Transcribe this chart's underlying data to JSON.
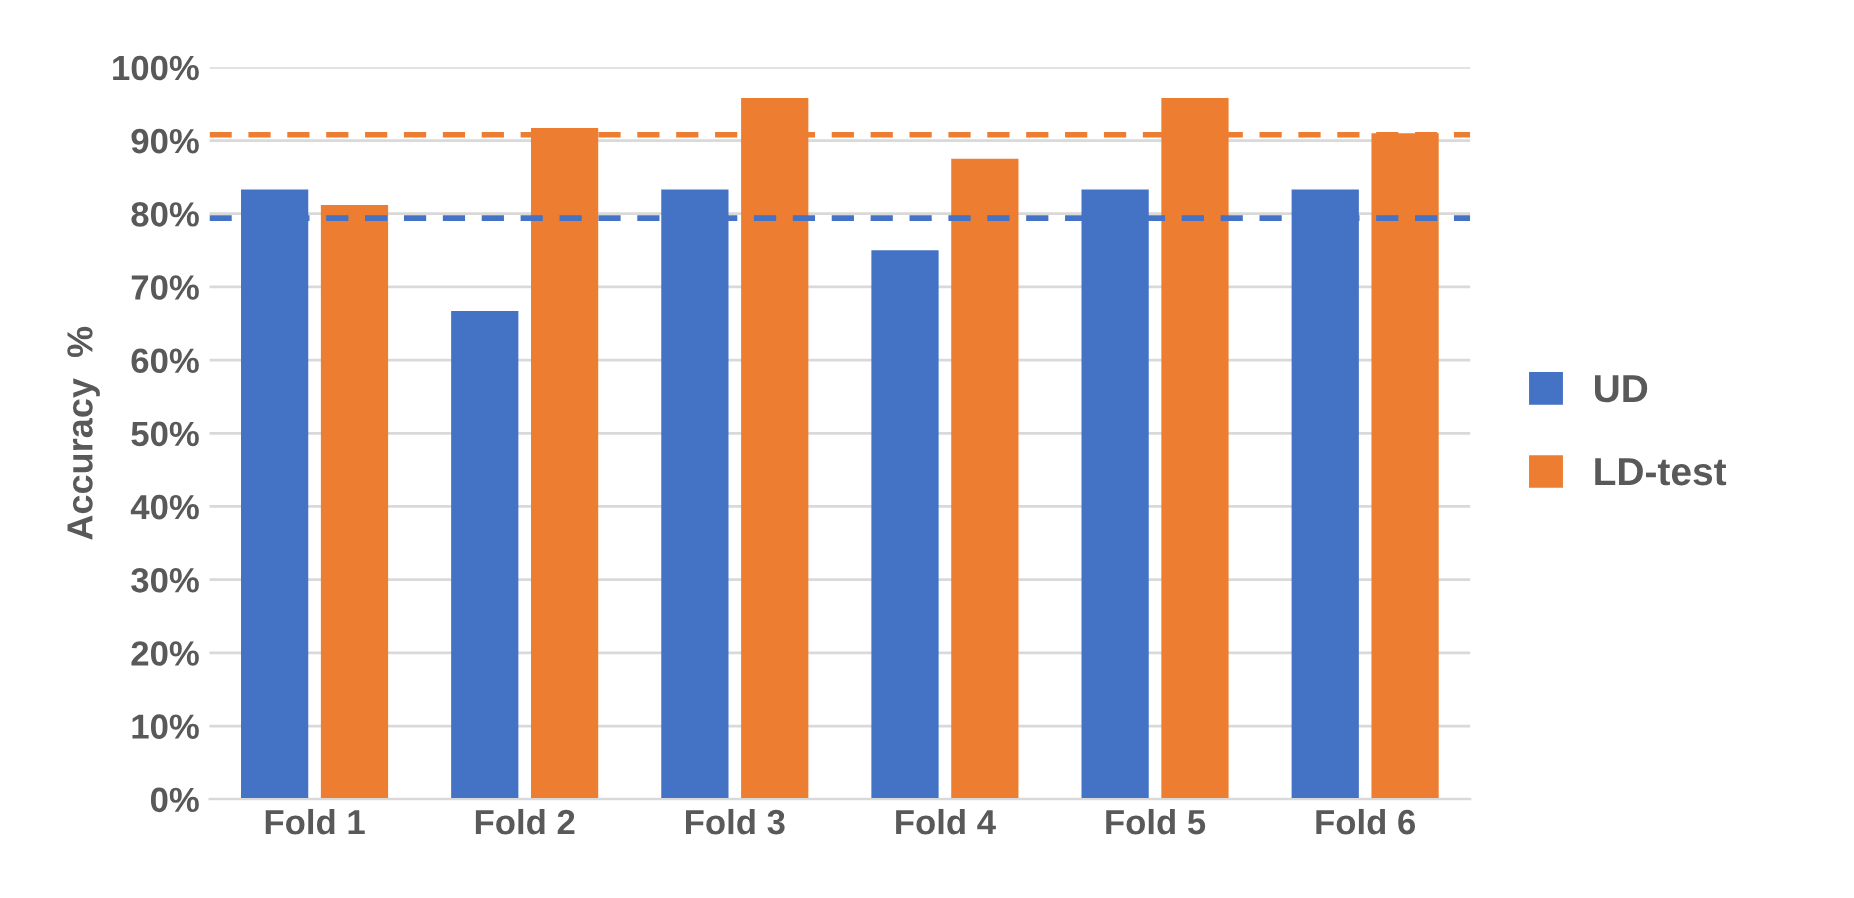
{
  "chart_data": {
    "type": "bar",
    "ylabel": "Accuracy  %",
    "categories": [
      "Fold 1",
      "Fold 2",
      "Fold 3",
      "Fold 4",
      "Fold 5",
      "Fold 6"
    ],
    "series": [
      {
        "name": "UD",
        "color": "#4472c4",
        "values": [
          83.3,
          66.7,
          83.3,
          75,
          83.3,
          83.3
        ]
      },
      {
        "name": "LD-test",
        "color": "#ed7d31",
        "values": [
          81.2,
          91.7,
          95.8,
          87.5,
          95.8,
          91
        ]
      }
    ],
    "ylim": [
      0,
      100
    ],
    "yticks": [
      {
        "value": 0,
        "label": "0%"
      },
      {
        "value": 10,
        "label": "10%"
      },
      {
        "value": 20,
        "label": "20%"
      },
      {
        "value": 30,
        "label": "30%"
      },
      {
        "value": 40,
        "label": "40%"
      },
      {
        "value": 50,
        "label": "50%"
      },
      {
        "value": 60,
        "label": "60%"
      },
      {
        "value": 70,
        "label": "70%"
      },
      {
        "value": 80,
        "label": "80%"
      },
      {
        "value": 90,
        "label": "90%"
      },
      {
        "value": 100,
        "label": "100%"
      }
    ],
    "ref_lines": [
      {
        "axis": "y",
        "value": 79.4,
        "color": "#4472c4",
        "line_style": "dashed"
      },
      {
        "axis": "y",
        "value": 90.8,
        "color": "#ed7d31",
        "line_style": "dashed"
      }
    ],
    "grid": "y",
    "legend": "right"
  }
}
